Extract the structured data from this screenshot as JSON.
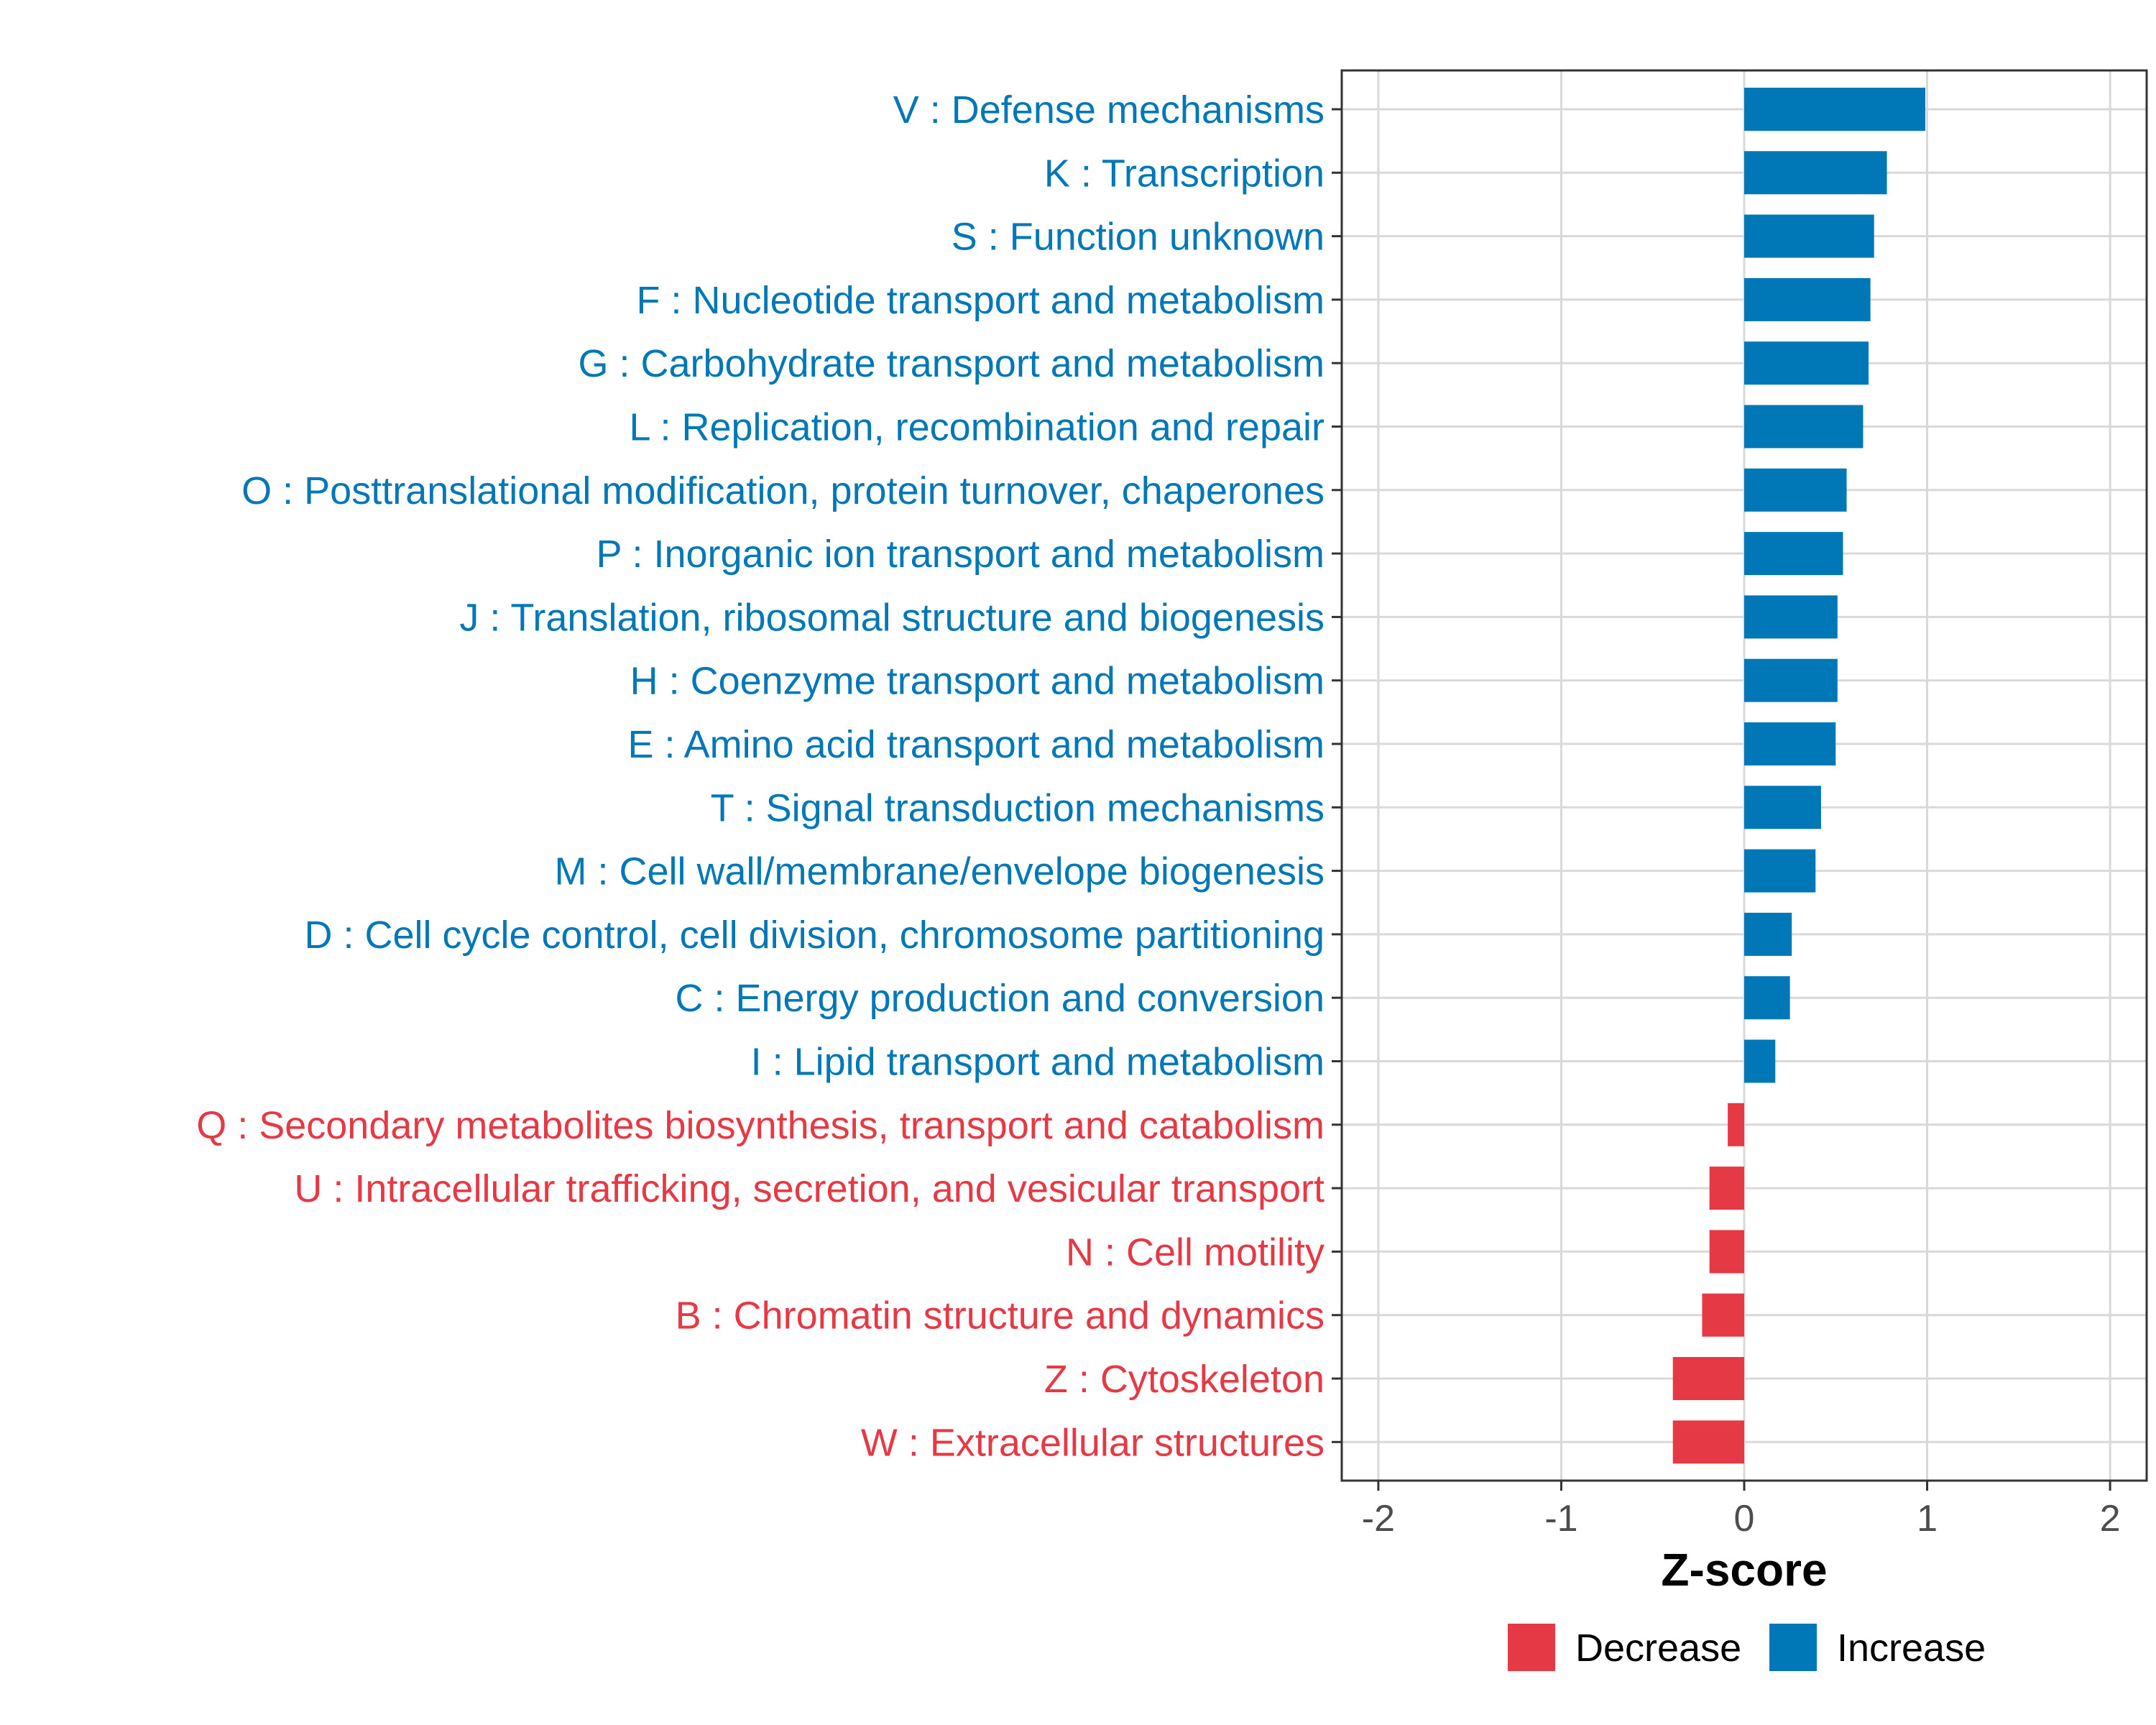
{
  "chart_data": {
    "type": "bar",
    "orientation": "horizontal",
    "xlabel": "Z-score",
    "ylabel": "",
    "xlim": [
      -2.2,
      2.2
    ],
    "xticks": [
      -2,
      -1,
      0,
      1,
      2
    ],
    "xtick_labels": [
      "-2",
      "-1",
      "0",
      "1",
      "2"
    ],
    "grid": true,
    "legend_position": "bottom",
    "legend": [
      {
        "label": "Decrease",
        "color": "#E63946"
      },
      {
        "label": "Increase",
        "color": "#0077B6"
      }
    ],
    "bars": [
      {
        "label": "V : Defense mechanisms",
        "value": 0.99,
        "group": "Increase"
      },
      {
        "label": "K : Transcription",
        "value": 0.78,
        "group": "Increase"
      },
      {
        "label": "S : Function unknown",
        "value": 0.71,
        "group": "Increase"
      },
      {
        "label": "F : Nucleotide transport and metabolism",
        "value": 0.69,
        "group": "Increase"
      },
      {
        "label": "G : Carbohydrate transport and metabolism",
        "value": 0.68,
        "group": "Increase"
      },
      {
        "label": "L : Replication, recombination and repair",
        "value": 0.65,
        "group": "Increase"
      },
      {
        "label": "O : Posttranslational modification, protein turnover, chaperones",
        "value": 0.56,
        "group": "Increase"
      },
      {
        "label": "P : Inorganic ion transport and metabolism",
        "value": 0.54,
        "group": "Increase"
      },
      {
        "label": "J : Translation, ribosomal structure and biogenesis",
        "value": 0.51,
        "group": "Increase"
      },
      {
        "label": "H : Coenzyme transport and metabolism",
        "value": 0.51,
        "group": "Increase"
      },
      {
        "label": "E : Amino acid transport and metabolism",
        "value": 0.5,
        "group": "Increase"
      },
      {
        "label": "T : Signal transduction mechanisms",
        "value": 0.42,
        "group": "Increase"
      },
      {
        "label": "M : Cell wall/membrane/envelope biogenesis",
        "value": 0.39,
        "group": "Increase"
      },
      {
        "label": "D : Cell cycle control, cell division, chromosome partitioning",
        "value": 0.26,
        "group": "Increase"
      },
      {
        "label": "C : Energy production and conversion",
        "value": 0.25,
        "group": "Increase"
      },
      {
        "label": "I : Lipid transport and metabolism",
        "value": 0.17,
        "group": "Increase"
      },
      {
        "label": "Q : Secondary metabolites biosynthesis, transport and catabolism",
        "value": -0.09,
        "group": "Decrease"
      },
      {
        "label": "U : Intracellular trafficking, secretion, and vesicular transport",
        "value": -0.19,
        "group": "Decrease"
      },
      {
        "label": "N : Cell motility",
        "value": -0.19,
        "group": "Decrease"
      },
      {
        "label": "B : Chromatin structure and dynamics",
        "value": -0.23,
        "group": "Decrease"
      },
      {
        "label": "Z : Cytoskeleton",
        "value": -0.39,
        "group": "Decrease"
      },
      {
        "label": "W : Extracellular structures",
        "value": -0.39,
        "group": "Decrease"
      }
    ]
  }
}
